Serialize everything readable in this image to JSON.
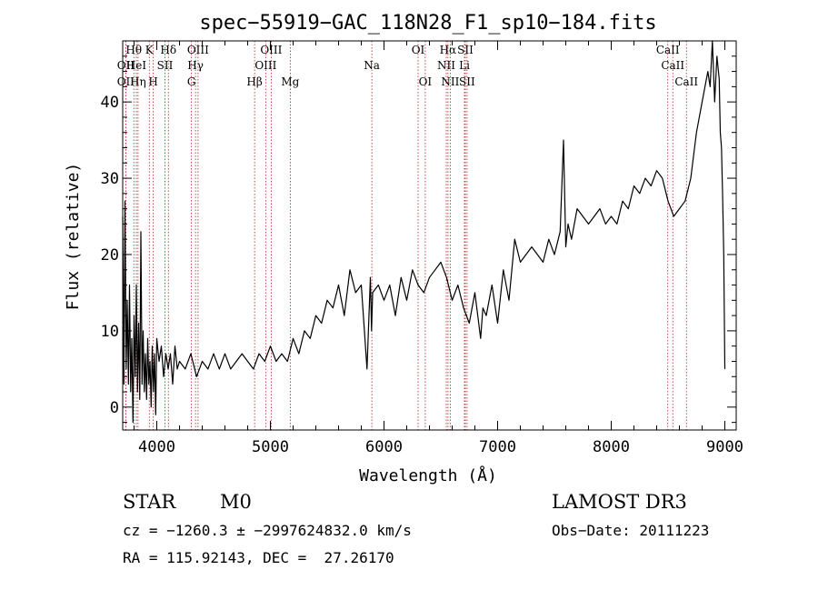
{
  "chart_data": {
    "type": "line",
    "title": "spec−55919−GAC_118N28_F1_sp10−184.fits",
    "xlabel": "Wavelength (Å)",
    "ylabel": "Flux (relative)",
    "xlim": [
      3700,
      9100
    ],
    "ylim": [
      -3,
      48
    ],
    "xticks": [
      4000,
      5000,
      6000,
      7000,
      8000,
      9000
    ],
    "yticks": [
      0,
      10,
      20,
      30,
      40
    ],
    "grid": false,
    "series": [
      {
        "color": "#000000",
        "x": [
          3700,
          3710,
          3720,
          3730,
          3740,
          3750,
          3760,
          3770,
          3780,
          3790,
          3800,
          3810,
          3820,
          3830,
          3840,
          3850,
          3860,
          3870,
          3880,
          3890,
          3900,
          3910,
          3920,
          3930,
          3940,
          3950,
          3960,
          3970,
          3980,
          3990,
          4000,
          4020,
          4040,
          4060,
          4080,
          4100,
          4120,
          4140,
          4160,
          4180,
          4200,
          4250,
          4300,
          4350,
          4400,
          4450,
          4500,
          4550,
          4600,
          4650,
          4700,
          4750,
          4800,
          4850,
          4900,
          4950,
          5000,
          5050,
          5100,
          5150,
          5200,
          5250,
          5300,
          5350,
          5400,
          5450,
          5500,
          5550,
          5600,
          5650,
          5700,
          5750,
          5800,
          5850,
          5880,
          5890,
          5900,
          5950,
          6000,
          6050,
          6100,
          6150,
          6200,
          6250,
          6300,
          6350,
          6400,
          6450,
          6500,
          6550,
          6600,
          6650,
          6700,
          6750,
          6800,
          6850,
          6870,
          6900,
          6950,
          7000,
          7050,
          7100,
          7150,
          7200,
          7250,
          7300,
          7350,
          7400,
          7450,
          7500,
          7550,
          7580,
          7600,
          7620,
          7650,
          7700,
          7750,
          7800,
          7850,
          7900,
          7950,
          8000,
          8050,
          8100,
          8150,
          8200,
          8250,
          8300,
          8350,
          8400,
          8450,
          8500,
          8550,
          8600,
          8650,
          8700,
          8750,
          8800,
          8850,
          8870,
          8890,
          8910,
          8930,
          8950,
          8960,
          8970,
          8980,
          8990,
          9000
        ],
        "y": [
          25,
          3,
          27,
          5,
          14,
          3,
          16,
          2,
          9,
          -2,
          12,
          4,
          16,
          2,
          11,
          1,
          23,
          3,
          10,
          2,
          7,
          1,
          9,
          3,
          6,
          0,
          8,
          2,
          7,
          -1,
          9,
          6,
          8,
          4,
          7,
          5,
          7,
          3,
          8,
          5,
          6,
          5,
          7,
          4,
          6,
          5,
          7,
          5,
          7,
          5,
          6,
          7,
          6,
          5,
          7,
          6,
          8,
          6,
          7,
          6,
          9,
          7,
          10,
          9,
          12,
          11,
          14,
          13,
          16,
          12,
          18,
          15,
          16,
          5,
          17,
          10,
          15,
          16,
          14,
          16,
          12,
          17,
          14,
          18,
          16,
          15,
          17,
          18,
          19,
          17,
          14,
          16,
          13,
          11,
          15,
          9,
          13,
          12,
          16,
          11,
          18,
          14,
          22,
          19,
          20,
          21,
          20,
          19,
          22,
          20,
          23,
          35,
          21,
          24,
          22,
          26,
          25,
          24,
          25,
          26,
          24,
          25,
          24,
          27,
          26,
          29,
          28,
          30,
          29,
          31,
          30,
          27,
          25,
          26,
          27,
          30,
          36,
          40,
          44,
          42,
          48,
          40,
          46,
          43,
          36,
          34,
          28,
          20,
          5
        ]
      }
    ],
    "lines": [
      {
        "label": "Hθ",
        "x": 3798,
        "row": 1
      },
      {
        "label": "OII",
        "x": 3727,
        "row": 2
      },
      {
        "label": "OII",
        "x": 3727,
        "row": 3
      },
      {
        "label": "HeI",
        "x": 3820,
        "row": 2
      },
      {
        "label": "Hη",
        "x": 3835,
        "row": 3
      },
      {
        "label": "K",
        "x": 3934,
        "row": 1
      },
      {
        "label": "SII",
        "x": 4072,
        "row": 2
      },
      {
        "label": "H",
        "x": 3969,
        "row": 3
      },
      {
        "label": "Hδ",
        "x": 4102,
        "row": 1
      },
      {
        "label": "OIII",
        "x": 4363,
        "row": 1
      },
      {
        "label": "Hγ",
        "x": 4341,
        "row": 2
      },
      {
        "label": "G",
        "x": 4305,
        "row": 3
      },
      {
        "label": "OIII",
        "x": 4959,
        "row": 2
      },
      {
        "label": "OIII",
        "x": 5007,
        "row": 1
      },
      {
        "label": "Hβ",
        "x": 4861,
        "row": 3
      },
      {
        "label": "Mg",
        "x": 5175,
        "row": 3
      },
      {
        "label": "Na",
        "x": 5893,
        "row": 2
      },
      {
        "label": "OI",
        "x": 6300,
        "row": 1
      },
      {
        "label": "OI",
        "x": 6363,
        "row": 3
      },
      {
        "label": "Hα",
        "x": 6563,
        "row": 1
      },
      {
        "label": "SII",
        "x": 6716,
        "row": 1
      },
      {
        "label": "NII",
        "x": 6548,
        "row": 2
      },
      {
        "label": "Li",
        "x": 6708,
        "row": 2
      },
      {
        "label": "NII",
        "x": 6583,
        "row": 3
      },
      {
        "label": "SII",
        "x": 6731,
        "row": 3
      },
      {
        "label": "CaII",
        "x": 8498,
        "row": 1
      },
      {
        "label": "CaII",
        "x": 8542,
        "row": 2
      },
      {
        "label": "CaII",
        "x": 8662,
        "row": 3
      }
    ]
  },
  "info": {
    "object_class": "STAR",
    "subclass": "M0",
    "survey": "LAMOST DR3",
    "cz_line": "cz = −1260.3 ± −2997624832.0 km/s",
    "obs_date": "Obs−Date: 20111223",
    "radec_line": "RA = 115.92143, DEC =  27.26170"
  },
  "colors": {
    "line": "#000000",
    "marker_line": "#b22222"
  }
}
